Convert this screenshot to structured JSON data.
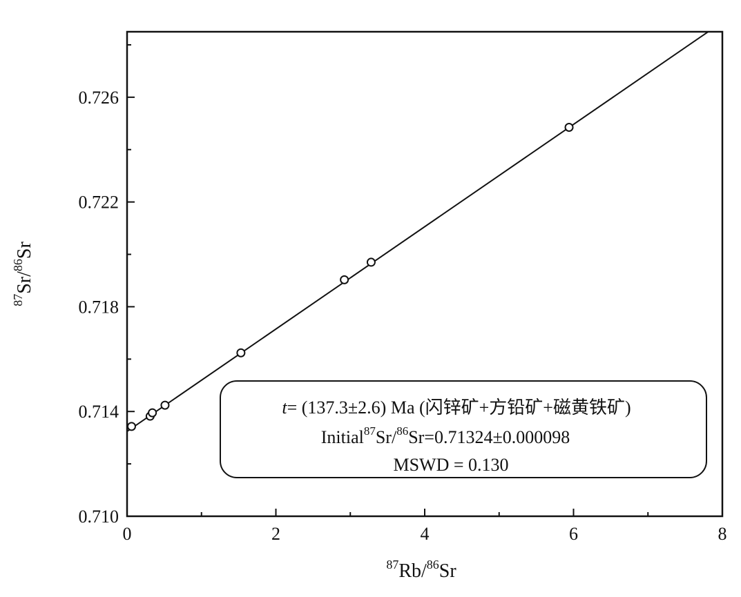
{
  "chart_data": {
    "type": "scatter",
    "title": "",
    "x": {
      "label_sup1": "87",
      "label_main1": "Rb/",
      "label_sup2": "86",
      "label_main2": "Sr",
      "range": [
        0,
        8
      ],
      "major_ticks": [
        0,
        2,
        4,
        6,
        8
      ],
      "tick_labels": [
        "0",
        "2",
        "4",
        "6",
        "8"
      ],
      "minor_ticks": [
        1,
        3,
        5,
        7
      ]
    },
    "y": {
      "label_sup1": "87",
      "label_main1": "Sr/",
      "label_sup2": "86",
      "label_main2": "Sr",
      "range": [
        0.71,
        0.7285
      ],
      "major_ticks": [
        0.71,
        0.714,
        0.718,
        0.722,
        0.726
      ],
      "tick_labels": [
        "0.710",
        "0.714",
        "0.718",
        "0.722",
        "0.726"
      ],
      "minor_ticks": [
        0.712,
        0.716,
        0.72,
        0.724,
        0.728
      ]
    },
    "grid": false,
    "series": [
      {
        "points": [
          {
            "x": 0.06,
            "y": 0.71343
          },
          {
            "x": 0.31,
            "y": 0.71382
          },
          {
            "x": 0.34,
            "y": 0.71395
          },
          {
            "x": 0.51,
            "y": 0.71424
          },
          {
            "x": 1.53,
            "y": 0.71624
          },
          {
            "x": 2.92,
            "y": 0.71903
          },
          {
            "x": 3.28,
            "y": 0.7197
          },
          {
            "x": 5.94,
            "y": 0.72485
          }
        ]
      }
    ],
    "fit_line": {
      "intercept": 0.71324,
      "slope": 0.001954
    },
    "annotation": {
      "line1_italic": "t",
      "line1_rest": "= (137.3±2.6) Ma  (闪锌矿+方铅矿+磁黄铁矿)",
      "line2_pre": "Initial",
      "line2_sup1": "87",
      "line2_mid": "Sr/",
      "line2_sup2": "86",
      "line2_post": "Sr=0.71324±0.000098",
      "line3": "MSWD = 0.130"
    }
  }
}
